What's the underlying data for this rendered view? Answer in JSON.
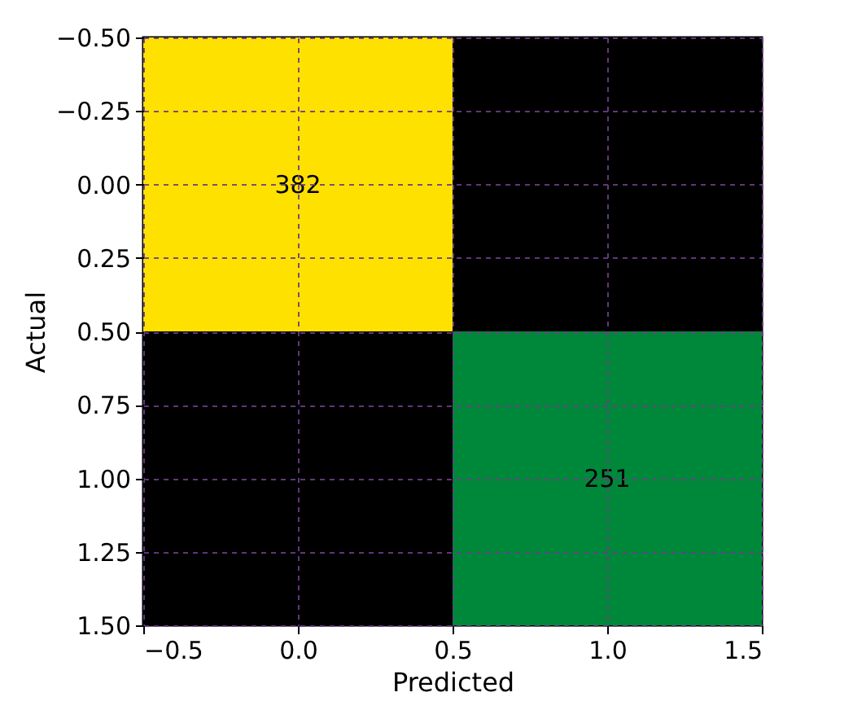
{
  "chart_data": {
    "type": "heatmap",
    "xlabel": "Predicted",
    "ylabel": "Actual",
    "x": [
      0,
      1
    ],
    "y": [
      0,
      1
    ],
    "cells": [
      [
        382,
        null
      ],
      [
        null,
        251
      ]
    ],
    "colors": [
      [
        "#ffe100",
        null
      ],
      [
        null,
        "#00883a"
      ]
    ],
    "data_labels": true,
    "grid": true,
    "line_style": "dashed",
    "xlim": [
      -0.5,
      1.5
    ],
    "ylim": [
      1.5,
      -0.5
    ],
    "xticks": [
      {
        "value": -0.5,
        "label": "−0.5"
      },
      {
        "value": 0,
        "label": "0.0"
      },
      {
        "value": 0.5,
        "label": "0.5"
      },
      {
        "value": 1,
        "label": "1.0"
      },
      {
        "value": 1.5,
        "label": "1.5"
      }
    ],
    "yticks": [
      {
        "value": -0.5,
        "label": "−0.50"
      },
      {
        "value": -0.25,
        "label": "−0.25"
      },
      {
        "value": 0,
        "label": "0.00"
      },
      {
        "value": 0.25,
        "label": "0.25"
      },
      {
        "value": 0.5,
        "label": "0.50"
      },
      {
        "value": 0.75,
        "label": "0.75"
      },
      {
        "value": 1,
        "label": "1.00"
      },
      {
        "value": 1.25,
        "label": "1.25"
      },
      {
        "value": 1.5,
        "label": "1.50"
      }
    ]
  }
}
